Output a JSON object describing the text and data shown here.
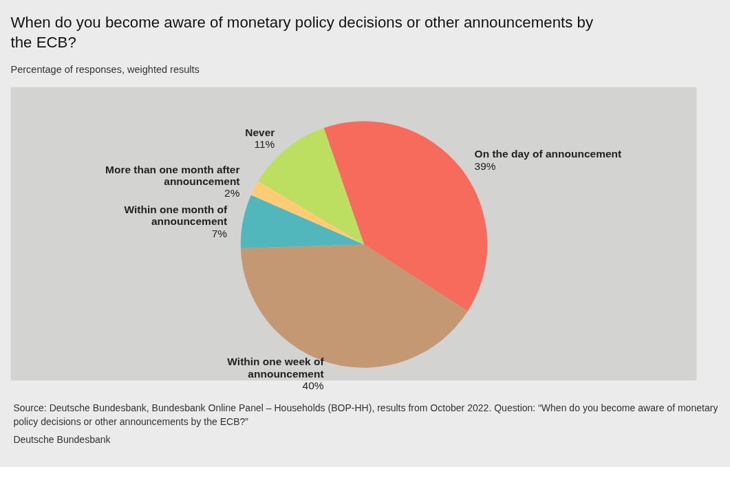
{
  "chart_data": {
    "type": "pie",
    "title": "When do you become aware of monetary policy decisions or other announcements by the ECB?",
    "subtitle": "Percentage of responses, weighted results",
    "categories": [
      "On the day of announcement",
      "Within one week of announcement",
      "Within one month of announcement",
      "More than one month after announcement",
      "Never"
    ],
    "values": [
      39,
      40,
      7,
      2,
      11
    ],
    "value_labels": [
      "39%",
      "40%",
      "7%",
      "2%",
      "11%"
    ],
    "colors": [
      "#f66b5b",
      "#c49872",
      "#52b7bd",
      "#ffcc73",
      "#bcdf62"
    ],
    "legend": false,
    "annotations": [
      "Source: Deutsche Bundesbank, Bundesbank Online Panel – Households (BOP-HH), results from October 2022. Question: “When do you become aware of monetary policy decisions or other announcements by the ECB?”",
      "Deutsche Bundesbank"
    ]
  }
}
